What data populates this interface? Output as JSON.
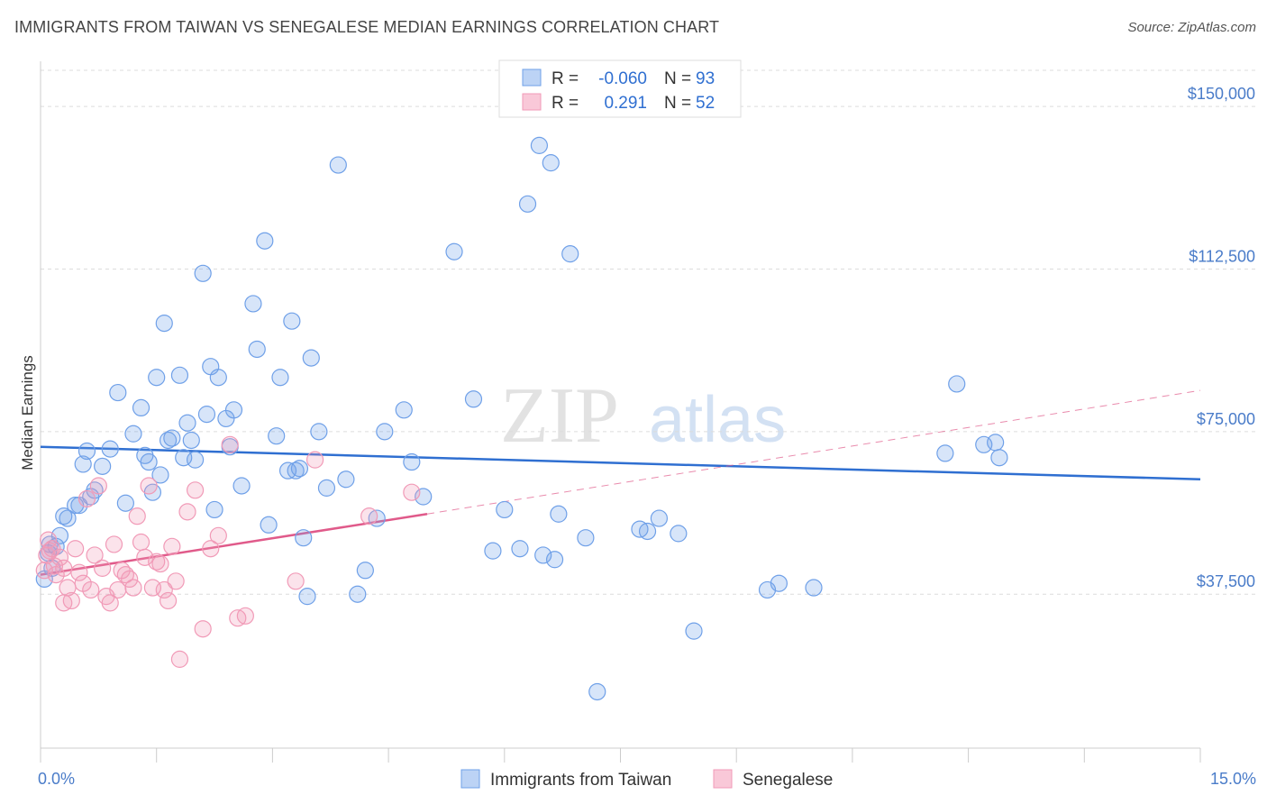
{
  "title": "IMMIGRANTS FROM TAIWAN VS SENEGALESE MEDIAN EARNINGS CORRELATION CHART",
  "source": "Source: ZipAtlas.com",
  "watermark": {
    "zip": "ZIP",
    "atlas": "atlas"
  },
  "chart_data": {
    "type": "scatter",
    "xlabel": "",
    "ylabel": "Median Earnings",
    "xlim": [
      0,
      15
    ],
    "ylim": [
      2000,
      160000
    ],
    "x_tick_labels": [
      {
        "value": 0,
        "label": "0.0%"
      },
      {
        "value": 15,
        "label": "15.0%"
      }
    ],
    "y_ticks": [
      {
        "value": 37500,
        "label": "$37,500"
      },
      {
        "value": 75000,
        "label": "$75,000"
      },
      {
        "value": 112500,
        "label": "$112,500"
      },
      {
        "value": 150000,
        "label": "$150,000"
      }
    ],
    "legend_box": [
      {
        "r_label": "R =",
        "r_value": "-0.060",
        "n_label": "N =",
        "n_value": "93"
      },
      {
        "r_label": "R =",
        "r_value": "0.291",
        "n_label": "N =",
        "n_value": "52"
      }
    ],
    "series": [
      {
        "name": "Immigrants from Taiwan",
        "color": "#6fa0e8",
        "trend_color": "#2f6fd1",
        "trend": {
          "x0": 0,
          "y0": 71500,
          "x1": 15,
          "y1": 64000
        },
        "points": [
          [
            0.05,
            41000
          ],
          [
            0.1,
            47000
          ],
          [
            0.12,
            49000
          ],
          [
            0.15,
            43500
          ],
          [
            0.2,
            48500
          ],
          [
            0.25,
            51000
          ],
          [
            0.3,
            55500
          ],
          [
            0.35,
            55000
          ],
          [
            0.45,
            58000
          ],
          [
            0.5,
            58000
          ],
          [
            0.55,
            67500
          ],
          [
            0.6,
            70500
          ],
          [
            0.65,
            60000
          ],
          [
            0.7,
            61500
          ],
          [
            0.8,
            67000
          ],
          [
            0.9,
            71000
          ],
          [
            1.0,
            84000
          ],
          [
            1.1,
            58500
          ],
          [
            1.2,
            74500
          ],
          [
            1.3,
            80500
          ],
          [
            1.35,
            69500
          ],
          [
            1.4,
            68000
          ],
          [
            1.45,
            61000
          ],
          [
            1.5,
            87500
          ],
          [
            1.55,
            65000
          ],
          [
            1.6,
            100000
          ],
          [
            1.65,
            73000
          ],
          [
            1.7,
            73500
          ],
          [
            1.8,
            88000
          ],
          [
            1.85,
            69000
          ],
          [
            1.9,
            77000
          ],
          [
            1.95,
            73000
          ],
          [
            2.0,
            68500
          ],
          [
            2.1,
            111500
          ],
          [
            2.15,
            79000
          ],
          [
            2.2,
            90000
          ],
          [
            2.25,
            57000
          ],
          [
            2.3,
            87500
          ],
          [
            2.4,
            78000
          ],
          [
            2.45,
            71500
          ],
          [
            2.5,
            80000
          ],
          [
            2.6,
            62500
          ],
          [
            2.75,
            104500
          ],
          [
            2.8,
            94000
          ],
          [
            2.9,
            119000
          ],
          [
            2.95,
            53500
          ],
          [
            3.05,
            74000
          ],
          [
            3.1,
            87500
          ],
          [
            3.2,
            66000
          ],
          [
            3.25,
            100500
          ],
          [
            3.3,
            66000
          ],
          [
            3.35,
            66500
          ],
          [
            3.4,
            50500
          ],
          [
            3.45,
            37000
          ],
          [
            3.5,
            92000
          ],
          [
            3.6,
            75000
          ],
          [
            3.7,
            62000
          ],
          [
            3.85,
            136500
          ],
          [
            3.95,
            64000
          ],
          [
            4.1,
            37500
          ],
          [
            4.2,
            43000
          ],
          [
            4.35,
            55000
          ],
          [
            4.45,
            75000
          ],
          [
            4.7,
            80000
          ],
          [
            4.8,
            68000
          ],
          [
            4.95,
            60000
          ],
          [
            5.35,
            116500
          ],
          [
            5.6,
            82500
          ],
          [
            5.85,
            47500
          ],
          [
            6.0,
            57000
          ],
          [
            6.2,
            48000
          ],
          [
            6.3,
            127500
          ],
          [
            6.45,
            141000
          ],
          [
            6.5,
            46500
          ],
          [
            6.6,
            137000
          ],
          [
            6.65,
            45500
          ],
          [
            6.7,
            56000
          ],
          [
            6.85,
            116000
          ],
          [
            7.05,
            50500
          ],
          [
            7.2,
            15000
          ],
          [
            7.75,
            52500
          ],
          [
            7.85,
            52000
          ],
          [
            8.0,
            55000
          ],
          [
            8.25,
            51500
          ],
          [
            8.45,
            29000
          ],
          [
            9.4,
            38500
          ],
          [
            9.55,
            40000
          ],
          [
            10.0,
            39000
          ],
          [
            11.7,
            70000
          ],
          [
            11.85,
            86000
          ],
          [
            12.2,
            72000
          ],
          [
            12.35,
            72500
          ],
          [
            12.4,
            69000
          ]
        ]
      },
      {
        "name": "Senegalese",
        "color": "#f19ab7",
        "trend_color": "#e05a8a",
        "trend": {
          "x0": 0,
          "y0": 42000,
          "x1": 5.0,
          "y1": 56000
        },
        "trend_ext": {
          "x0": 5.0,
          "y0": 56000,
          "x1": 15,
          "y1": 84500
        },
        "points": [
          [
            0.05,
            43000
          ],
          [
            0.08,
            46500
          ],
          [
            0.1,
            50000
          ],
          [
            0.12,
            47500
          ],
          [
            0.15,
            48000
          ],
          [
            0.18,
            44000
          ],
          [
            0.2,
            42000
          ],
          [
            0.25,
            46000
          ],
          [
            0.3,
            43500
          ],
          [
            0.35,
            39000
          ],
          [
            0.4,
            36000
          ],
          [
            0.45,
            48000
          ],
          [
            0.5,
            42500
          ],
          [
            0.55,
            40000
          ],
          [
            0.6,
            59500
          ],
          [
            0.65,
            38500
          ],
          [
            0.7,
            46500
          ],
          [
            0.75,
            62500
          ],
          [
            0.8,
            43500
          ],
          [
            0.85,
            37000
          ],
          [
            0.9,
            35500
          ],
          [
            0.95,
            49000
          ],
          [
            1.0,
            38500
          ],
          [
            1.05,
            43000
          ],
          [
            1.1,
            42000
          ],
          [
            1.15,
            41000
          ],
          [
            1.2,
            39000
          ],
          [
            1.25,
            55500
          ],
          [
            1.3,
            49500
          ],
          [
            1.35,
            46000
          ],
          [
            1.4,
            62500
          ],
          [
            1.45,
            39000
          ],
          [
            1.5,
            45000
          ],
          [
            1.55,
            44500
          ],
          [
            1.6,
            38500
          ],
          [
            1.65,
            36000
          ],
          [
            1.7,
            48500
          ],
          [
            1.75,
            40500
          ],
          [
            1.8,
            22500
          ],
          [
            1.9,
            56500
          ],
          [
            2.0,
            61500
          ],
          [
            2.1,
            29500
          ],
          [
            2.2,
            48000
          ],
          [
            2.3,
            51000
          ],
          [
            2.45,
            72000
          ],
          [
            2.55,
            32000
          ],
          [
            2.65,
            32500
          ],
          [
            3.3,
            40500
          ],
          [
            3.55,
            68500
          ],
          [
            4.25,
            55500
          ],
          [
            4.8,
            61000
          ],
          [
            0.3,
            35500
          ]
        ]
      }
    ]
  }
}
